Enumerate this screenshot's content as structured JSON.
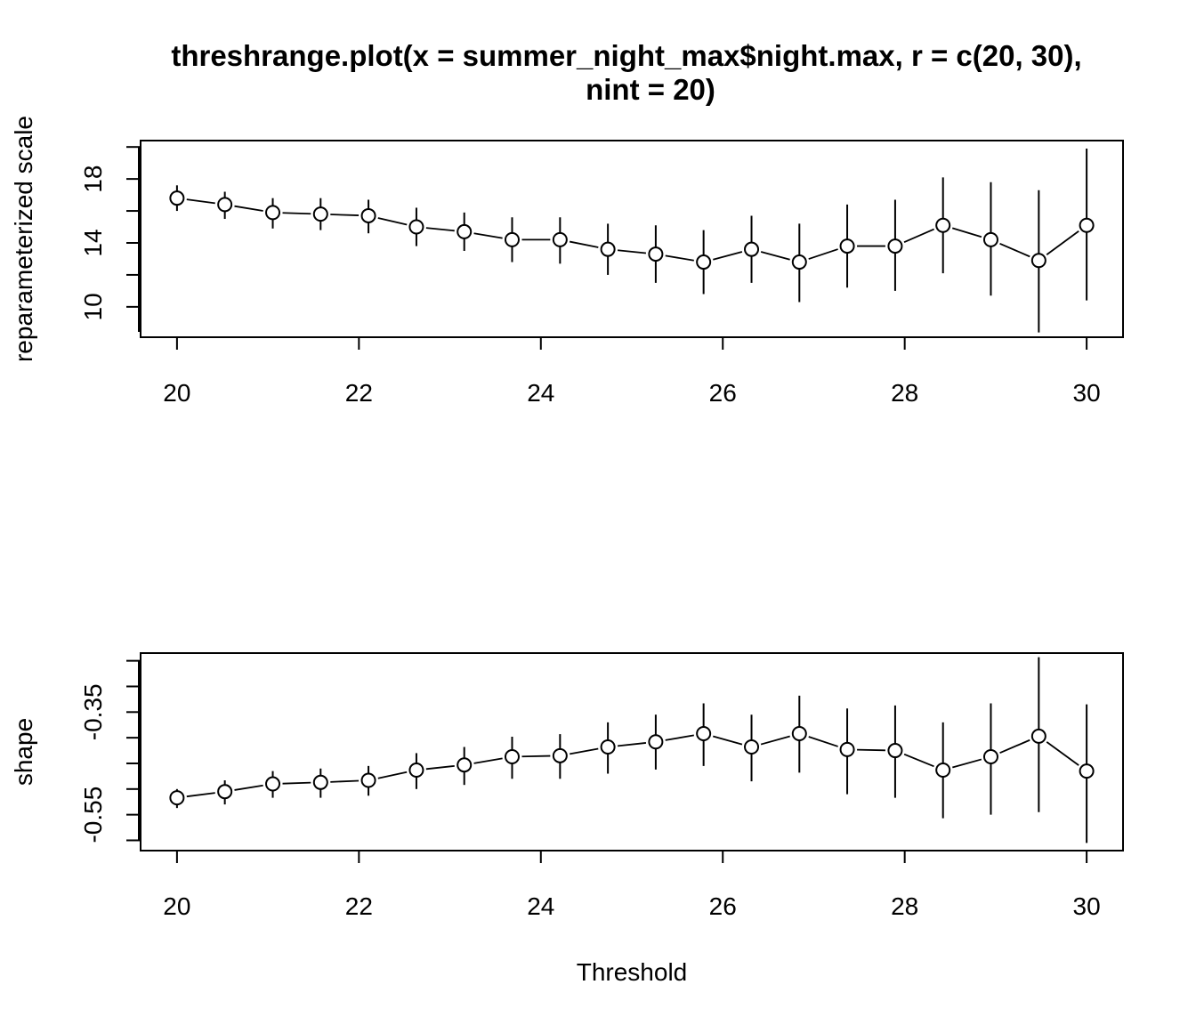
{
  "chart_data": [
    {
      "type": "scatter",
      "title": "threshrange.plot(x = summer_night_max$night.max, r = c(20, 30), nint = 20)",
      "title_lines": [
        "threshrange.plot(x = summer_night_max$night.max, r = c(20, 30),",
        "nint = 20)"
      ],
      "xlabel": "",
      "ylabel": "reparameterized scale",
      "x_ticks": [
        "20",
        "22",
        "24",
        "26",
        "28",
        "30"
      ],
      "y_ticks": [
        "10",
        "14",
        "18"
      ],
      "xlim": [
        19.6,
        30.4
      ],
      "ylim": [
        8.1,
        20.4
      ],
      "grid": false,
      "point_style": "open circles joined by dashed line with vertical interval bars",
      "x": [
        20.0,
        20.526,
        21.053,
        21.579,
        22.105,
        22.632,
        23.158,
        23.684,
        24.211,
        24.737,
        25.263,
        25.789,
        26.316,
        26.842,
        27.368,
        27.895,
        28.421,
        28.947,
        29.474,
        30.0
      ],
      "values": [
        16.8,
        16.4,
        15.9,
        15.8,
        15.7,
        15.0,
        14.7,
        14.2,
        14.2,
        13.6,
        13.3,
        12.8,
        13.6,
        12.8,
        13.8,
        13.8,
        15.1,
        14.2,
        12.9,
        15.1
      ],
      "lower": [
        16.0,
        15.5,
        14.9,
        14.8,
        14.6,
        13.8,
        13.5,
        12.8,
        12.7,
        12.0,
        11.5,
        10.8,
        11.5,
        10.3,
        11.2,
        11.0,
        12.1,
        10.7,
        8.4,
        10.4
      ],
      "upper": [
        17.6,
        17.2,
        16.8,
        16.8,
        16.7,
        16.2,
        15.9,
        15.6,
        15.6,
        15.2,
        15.1,
        14.8,
        15.7,
        15.2,
        16.4,
        16.7,
        18.1,
        17.8,
        17.3,
        19.9
      ]
    },
    {
      "type": "scatter",
      "title": "",
      "xlabel": "Threshold",
      "ylabel": "shape",
      "x_ticks": [
        "20",
        "22",
        "24",
        "26",
        "28",
        "30"
      ],
      "y_ticks": [
        "-0.55",
        "-0.35"
      ],
      "xlim": [
        19.6,
        30.4
      ],
      "ylim": [
        -0.62,
        -0.235
      ],
      "grid": false,
      "point_style": "open circles joined by dashed line with vertical interval bars",
      "x": [
        20.0,
        20.526,
        21.053,
        21.579,
        22.105,
        22.632,
        23.158,
        23.684,
        24.211,
        24.737,
        25.263,
        25.789,
        26.316,
        26.842,
        27.368,
        27.895,
        28.421,
        28.947,
        29.474,
        30.0
      ],
      "values": [
        -0.517,
        -0.505,
        -0.49,
        -0.487,
        -0.483,
        -0.463,
        -0.453,
        -0.437,
        -0.435,
        -0.418,
        -0.408,
        -0.392,
        -0.418,
        -0.392,
        -0.423,
        -0.425,
        -0.463,
        -0.437,
        -0.397,
        -0.465
      ],
      "lower": [
        -0.537,
        -0.53,
        -0.517,
        -0.517,
        -0.513,
        -0.5,
        -0.492,
        -0.48,
        -0.48,
        -0.47,
        -0.462,
        -0.455,
        -0.485,
        -0.468,
        -0.51,
        -0.517,
        -0.557,
        -0.55,
        -0.545,
        -0.605
      ],
      "upper": [
        -0.5,
        -0.483,
        -0.465,
        -0.46,
        -0.455,
        -0.43,
        -0.418,
        -0.398,
        -0.393,
        -0.37,
        -0.355,
        -0.333,
        -0.355,
        -0.318,
        -0.343,
        -0.337,
        -0.37,
        -0.333,
        -0.243,
        -0.335
      ]
    }
  ]
}
